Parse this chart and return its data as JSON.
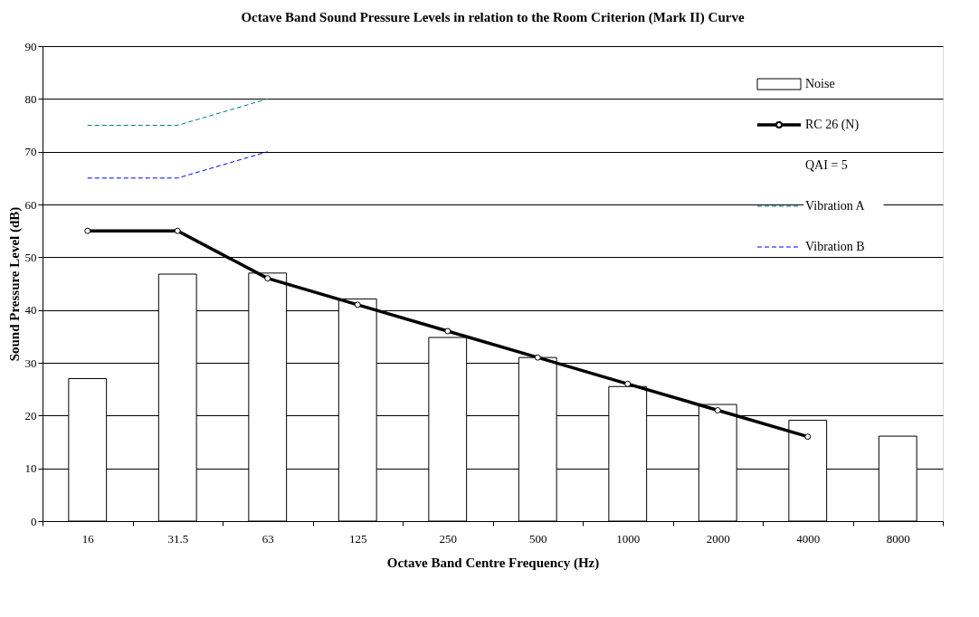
{
  "chart_data": {
    "type": "bar",
    "title": "Octave Band Sound Pressure Levels in relation to the Room Criterion (Mark II) Curve",
    "xlabel": "Octave Band Centre Frequency (Hz)",
    "ylabel": "Sound Pressure Level (dB)",
    "categories": [
      "16",
      "31.5",
      "63",
      "125",
      "250",
      "500",
      "1000",
      "2000",
      "4000",
      "8000"
    ],
    "series": [
      {
        "name": "Noise",
        "color": "#ffffff",
        "values": [
          27,
          46.8,
          47,
          42.1,
          34.8,
          31,
          25.5,
          22.1,
          19.1,
          16.1
        ]
      },
      {
        "name": "RC 26 (N)",
        "type": "line",
        "color": "#000000",
        "marker": "circle",
        "line_style": "solid",
        "values": [
          55,
          55,
          46,
          41,
          36,
          31,
          26,
          21,
          16,
          null
        ]
      },
      {
        "name": "Vibration A",
        "type": "line",
        "color": "#008080",
        "marker": "none",
        "line_style": "dashed",
        "values": [
          75,
          75,
          80,
          null,
          null,
          null,
          null,
          null,
          null,
          null
        ]
      },
      {
        "name": "Vibration B",
        "type": "line",
        "color": "#0000ff",
        "marker": "none",
        "line_style": "dashed",
        "values": [
          65,
          65,
          70,
          null,
          null,
          null,
          null,
          null,
          null,
          null
        ]
      }
    ],
    "annotations": [
      "QAI = 5"
    ],
    "ylim": [
      0,
      90
    ],
    "yticks": [
      0,
      10,
      20,
      30,
      40,
      50,
      60,
      70,
      80,
      90
    ],
    "grid": "y",
    "legend": "top right"
  }
}
